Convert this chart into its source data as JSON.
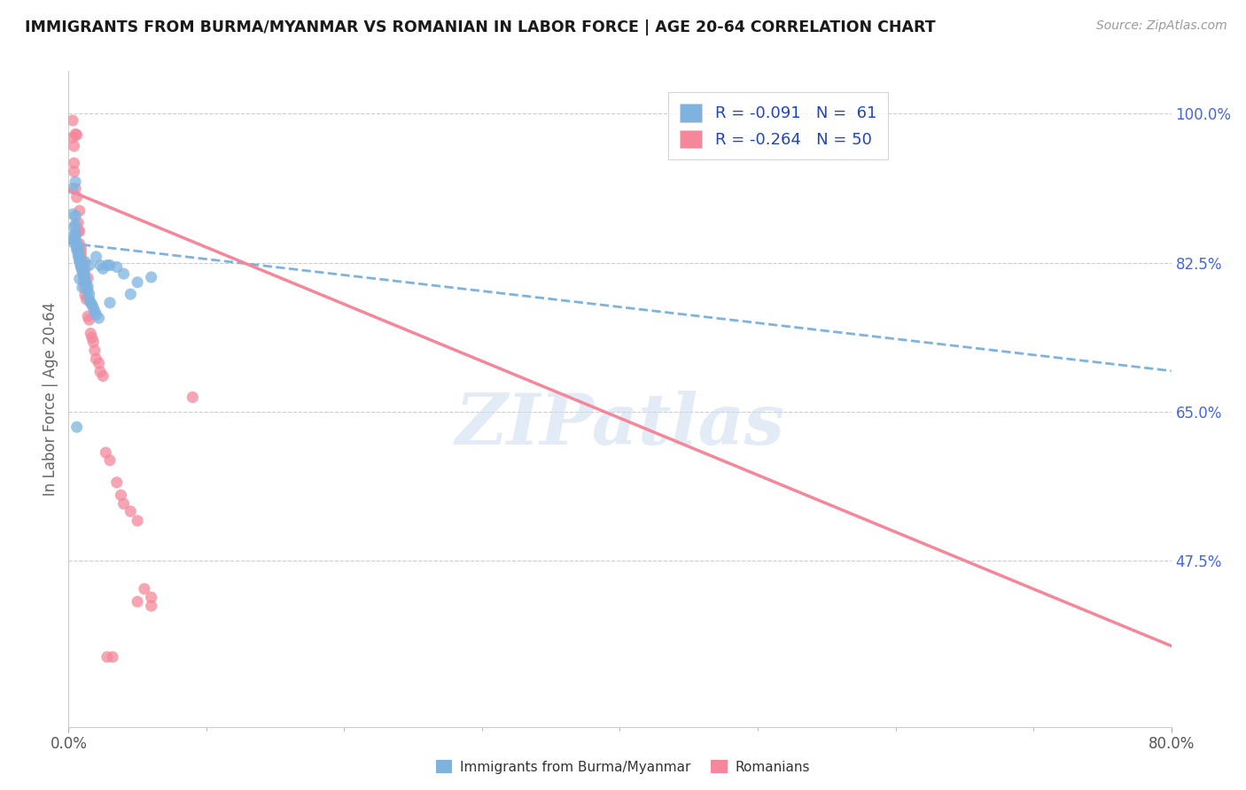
{
  "title": "IMMIGRANTS FROM BURMA/MYANMAR VS ROMANIAN IN LABOR FORCE | AGE 20-64 CORRELATION CHART",
  "source": "Source: ZipAtlas.com",
  "ylabel": "In Labor Force | Age 20-64",
  "ytick_vals": [
    0.475,
    0.65,
    0.825,
    1.0
  ],
  "ytick_labels": [
    "47.5%",
    "65.0%",
    "82.5%",
    "100.0%"
  ],
  "xmin": 0.0,
  "xmax": 80.0,
  "ymin": 0.28,
  "ymax": 1.05,
  "legend_label1": "Immigrants from Burma/Myanmar",
  "legend_label2": "Romanians",
  "watermark": "ZIPatlas",
  "blue_color": "#7EB3E0",
  "pink_color": "#F4879A",
  "title_color": "#222222",
  "tick_color_right": "#4466DD",
  "blue_scatter": [
    [
      0.5,
      0.92
    ],
    [
      0.5,
      0.88
    ],
    [
      0.5,
      0.87
    ],
    [
      0.5,
      0.86
    ],
    [
      0.5,
      0.855
    ],
    [
      0.5,
      0.85
    ],
    [
      0.6,
      0.848
    ],
    [
      0.6,
      0.843
    ],
    [
      0.6,
      0.84
    ],
    [
      0.7,
      0.84
    ],
    [
      0.7,
      0.837
    ],
    [
      0.7,
      0.833
    ],
    [
      0.8,
      0.832
    ],
    [
      0.8,
      0.828
    ],
    [
      0.8,
      0.826
    ],
    [
      0.9,
      0.826
    ],
    [
      0.9,
      0.823
    ],
    [
      0.9,
      0.822
    ],
    [
      0.9,
      0.82
    ],
    [
      1.0,
      0.819
    ],
    [
      1.0,
      0.818
    ],
    [
      1.0,
      0.815
    ],
    [
      1.1,
      0.813
    ],
    [
      1.1,
      0.811
    ],
    [
      1.1,
      0.808
    ],
    [
      1.2,
      0.807
    ],
    [
      1.2,
      0.804
    ],
    [
      1.2,
      0.802
    ],
    [
      1.3,
      0.8
    ],
    [
      1.4,
      0.797
    ],
    [
      1.4,
      0.792
    ],
    [
      1.5,
      0.788
    ],
    [
      1.5,
      0.782
    ],
    [
      1.6,
      0.778
    ],
    [
      1.7,
      0.776
    ],
    [
      1.8,
      0.772
    ],
    [
      1.9,
      0.768
    ],
    [
      2.0,
      0.764
    ],
    [
      2.2,
      0.76
    ],
    [
      2.3,
      0.822
    ],
    [
      2.5,
      0.818
    ],
    [
      2.8,
      0.822
    ],
    [
      3.0,
      0.822
    ],
    [
      3.0,
      0.778
    ],
    [
      3.5,
      0.82
    ],
    [
      4.0,
      0.812
    ],
    [
      4.5,
      0.788
    ],
    [
      5.0,
      0.802
    ],
    [
      6.0,
      0.808
    ],
    [
      0.3,
      0.912
    ],
    [
      0.3,
      0.882
    ],
    [
      0.4,
      0.867
    ],
    [
      0.4,
      0.857
    ],
    [
      0.4,
      0.852
    ],
    [
      0.4,
      0.848
    ],
    [
      0.6,
      0.632
    ],
    [
      0.8,
      0.806
    ],
    [
      1.0,
      0.796
    ],
    [
      1.2,
      0.826
    ],
    [
      1.5,
      0.822
    ],
    [
      2.0,
      0.832
    ]
  ],
  "pink_scatter": [
    [
      0.5,
      0.976
    ],
    [
      0.6,
      0.975
    ],
    [
      0.8,
      0.886
    ],
    [
      0.8,
      0.862
    ],
    [
      0.9,
      0.842
    ],
    [
      0.9,
      0.832
    ],
    [
      1.0,
      0.826
    ],
    [
      1.0,
      0.818
    ],
    [
      1.1,
      0.812
    ],
    [
      1.1,
      0.802
    ],
    [
      1.2,
      0.796
    ],
    [
      1.2,
      0.787
    ],
    [
      1.3,
      0.782
    ],
    [
      1.4,
      0.762
    ],
    [
      1.5,
      0.758
    ],
    [
      1.6,
      0.742
    ],
    [
      1.7,
      0.737
    ],
    [
      1.8,
      0.732
    ],
    [
      1.9,
      0.722
    ],
    [
      2.0,
      0.712
    ],
    [
      2.2,
      0.707
    ],
    [
      2.3,
      0.697
    ],
    [
      2.5,
      0.692
    ],
    [
      2.7,
      0.602
    ],
    [
      3.0,
      0.593
    ],
    [
      3.5,
      0.567
    ],
    [
      3.8,
      0.552
    ],
    [
      4.0,
      0.542
    ],
    [
      4.5,
      0.533
    ],
    [
      5.0,
      0.522
    ],
    [
      5.5,
      0.442
    ],
    [
      6.0,
      0.432
    ],
    [
      9.0,
      0.667
    ],
    [
      0.3,
      0.992
    ],
    [
      0.3,
      0.972
    ],
    [
      0.4,
      0.962
    ],
    [
      0.4,
      0.942
    ],
    [
      0.4,
      0.932
    ],
    [
      0.5,
      0.912
    ],
    [
      0.6,
      0.902
    ],
    [
      0.7,
      0.872
    ],
    [
      0.7,
      0.862
    ],
    [
      0.8,
      0.847
    ],
    [
      0.9,
      0.837
    ],
    [
      1.2,
      0.817
    ],
    [
      1.4,
      0.807
    ],
    [
      2.8,
      0.362
    ],
    [
      3.2,
      0.362
    ],
    [
      5.0,
      0.427
    ],
    [
      6.0,
      0.422
    ]
  ],
  "blue_trend_x": [
    0.0,
    80.0
  ],
  "blue_trend_y": [
    0.848,
    0.698
  ],
  "pink_trend_x": [
    0.0,
    80.0
  ],
  "pink_trend_y": [
    0.91,
    0.375
  ]
}
